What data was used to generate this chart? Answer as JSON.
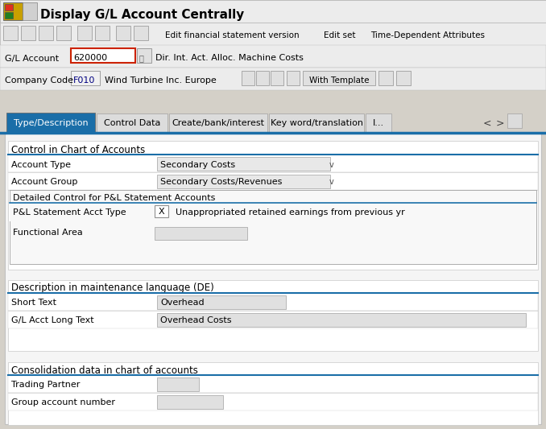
{
  "title": "Display G/L Account Centrally",
  "bg_color": "#d4d0c8",
  "white": "#ffffff",
  "content_bg": "#f0f0f0",
  "section_bg": "#ffffff",
  "field_bg": "#dcdcdc",
  "tab_active_bg": "#1a6ea8",
  "blue_line": "#1a6ea8",
  "red_border": "#cc2200",
  "gl_account_value": "620000",
  "gl_account_desc": "Dir. Int. Act. Alloc. Machine Costs",
  "company_code_value": "F010",
  "company_name": "Wind Turbine Inc. Europe",
  "tabs": [
    "Type/Description",
    "Control Data",
    "Create/bank/interest",
    "Key word/translation",
    "I..."
  ],
  "section1_title": "Control in Chart of Accounts",
  "account_type_label": "Account Type",
  "account_type_value": "Secondary Costs",
  "account_group_label": "Account Group",
  "account_group_value": "Secondary Costs/Revenues",
  "subsection_title": "Detailed Control for P&L Statement Accounts",
  "pl_label": "P&L Statement Acct Type",
  "pl_value": "X",
  "pl_desc": "Unappropriated retained earnings from previous yr",
  "func_area_label": "Functional Area",
  "section2_title": "Description in maintenance language (DE)",
  "short_text_label": "Short Text",
  "short_text_value": "Overhead",
  "long_text_label": "G/L Acct Long Text",
  "long_text_value": "Overhead Costs",
  "section3_title": "Consolidation data in chart of accounts",
  "trading_partner_label": "Trading Partner",
  "group_acct_label": "Group account number",
  "toolbar_items": [
    "Edit financial statement version",
    "Edit set",
    "Time-Dependent Attributes"
  ]
}
